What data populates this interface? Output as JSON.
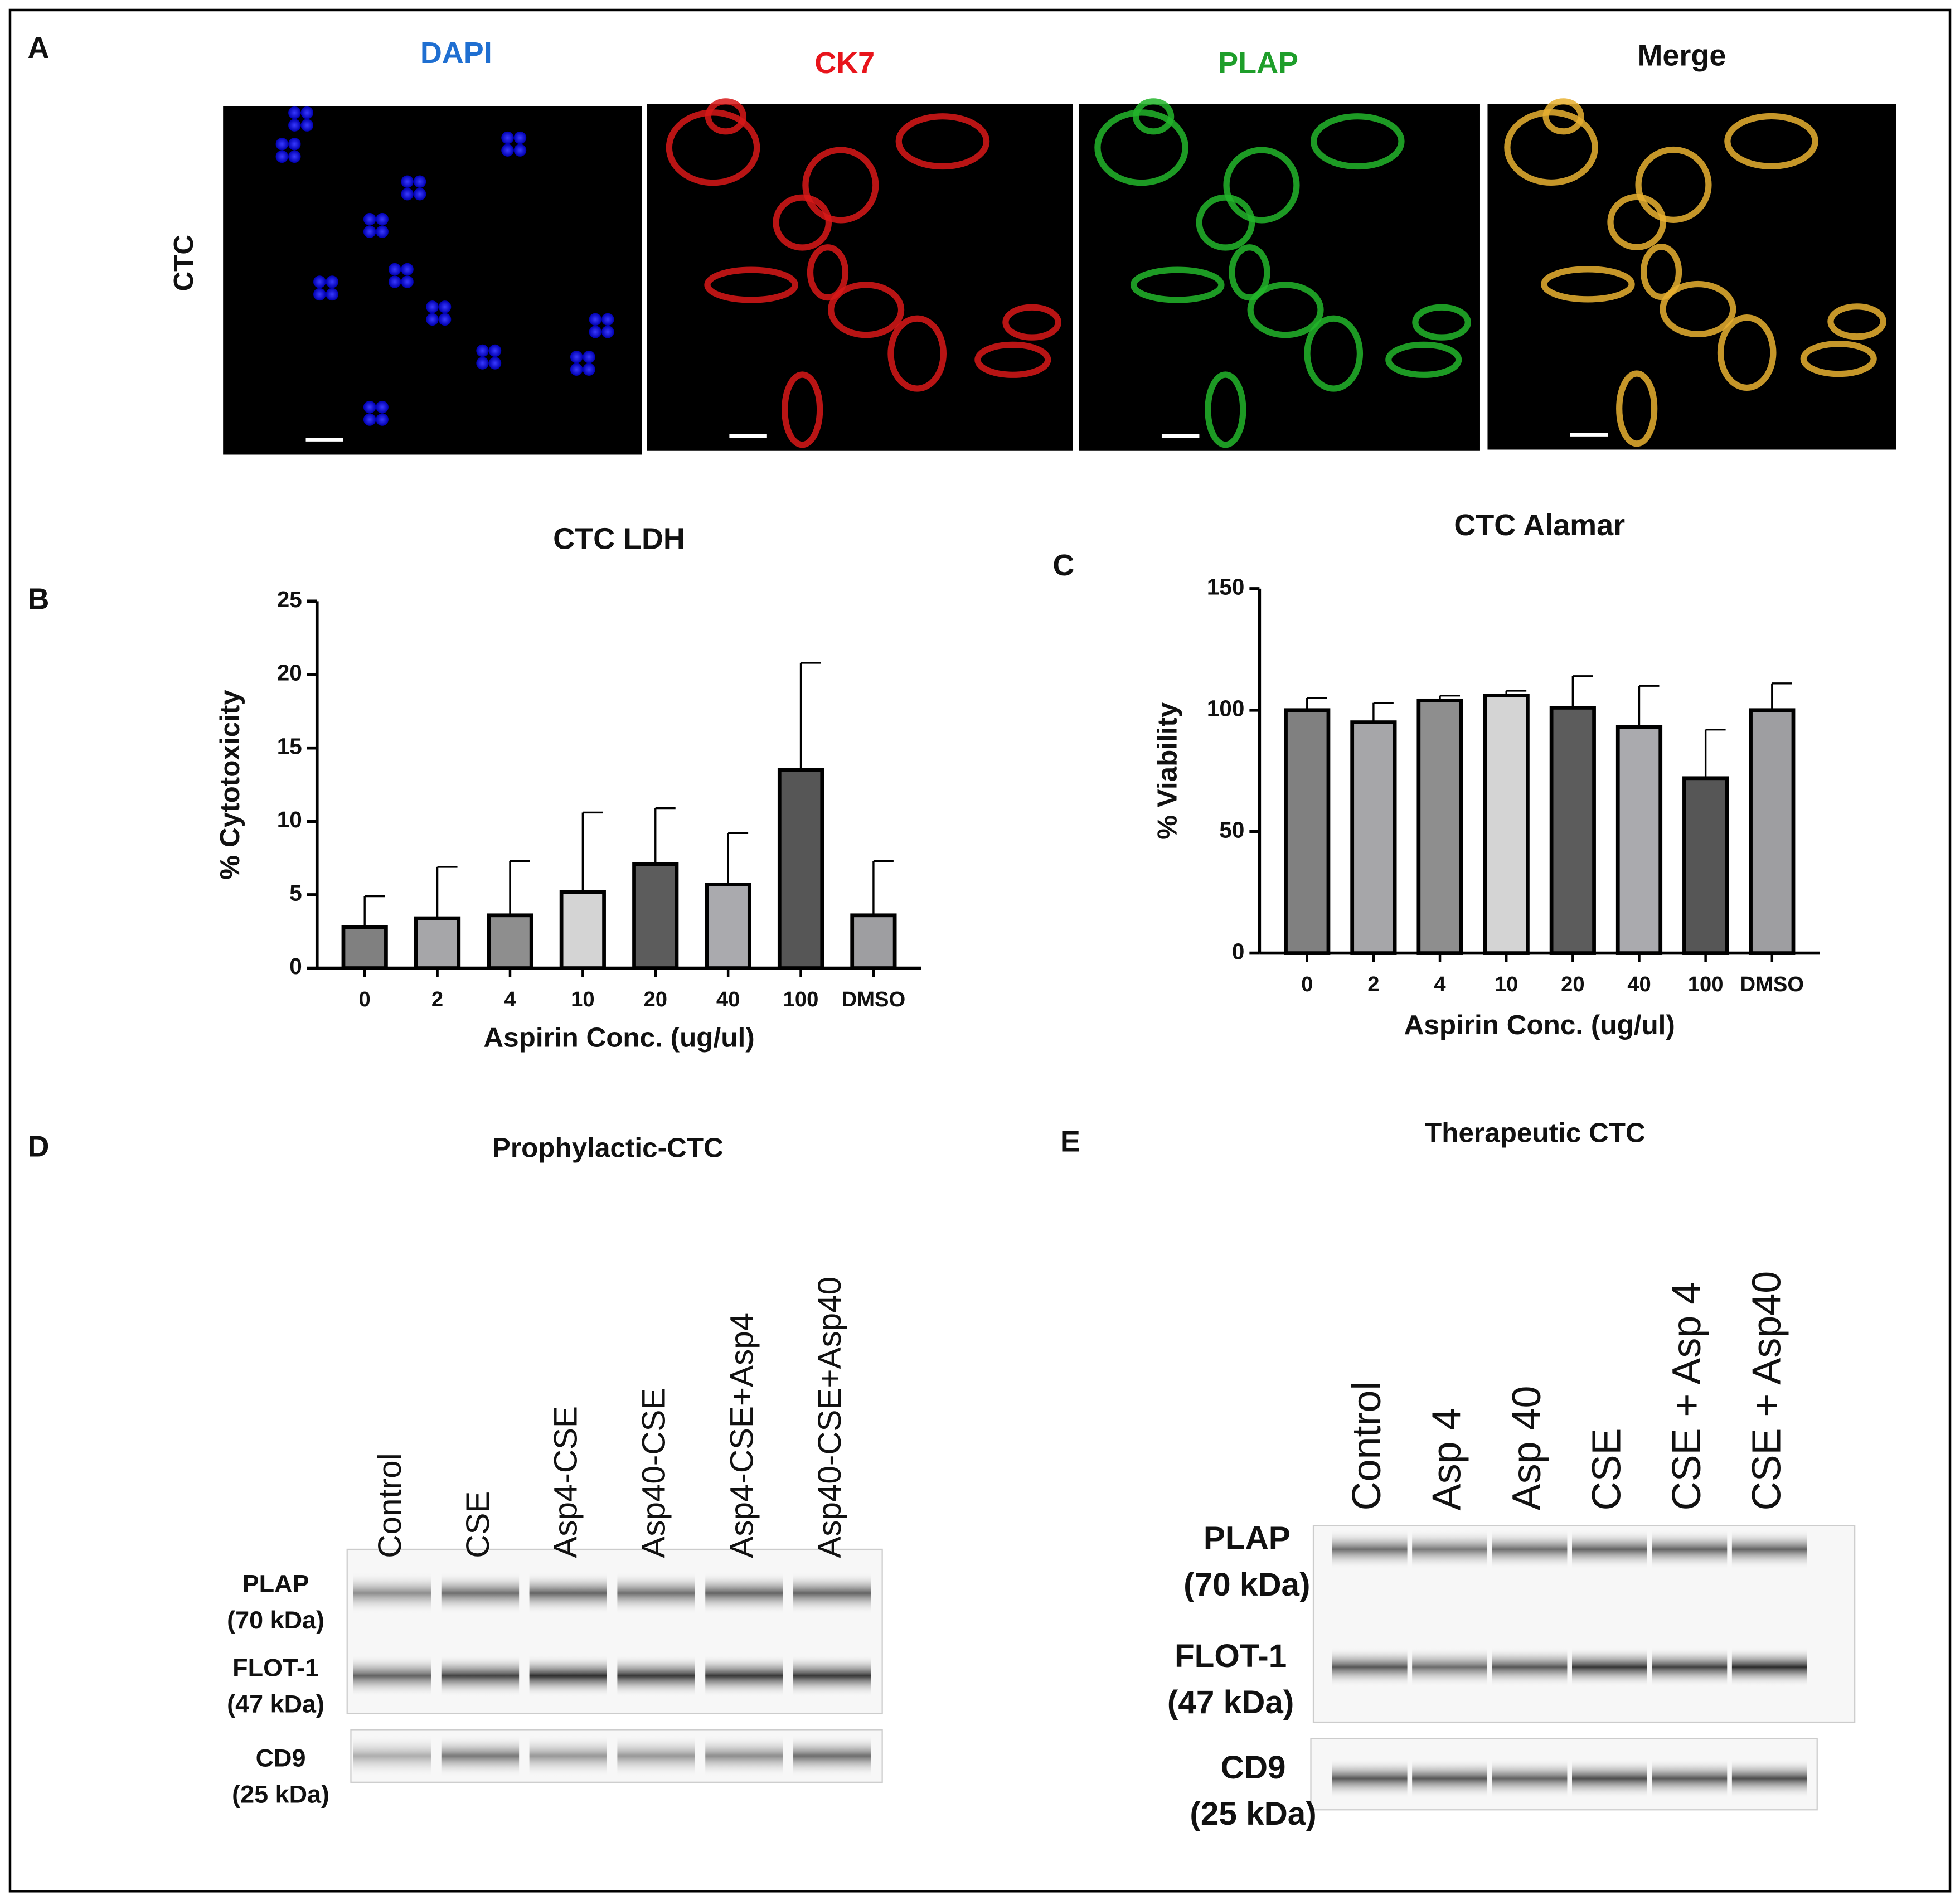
{
  "panel_a": {
    "letter": "A",
    "row_label": "CTC",
    "channels": [
      {
        "name": "DAPI",
        "color": "#1f6fd1"
      },
      {
        "name": "CK7",
        "color": "#e8141b"
      },
      {
        "name": "PLAP",
        "color": "#1e9e2a"
      },
      {
        "name": "Merge",
        "color": "#111111"
      }
    ]
  },
  "chart_data": [
    {
      "type": "bar",
      "letter": "B",
      "title": "CTC LDH",
      "xlabel": "Aspirin Conc. (ug/ul)",
      "ylabel": "% Cytotoxicity",
      "categories": [
        "0",
        "2",
        "4",
        "10",
        "20",
        "40",
        "100",
        "DMSO"
      ],
      "values": [
        2.8,
        3.4,
        3.6,
        5.2,
        7.1,
        5.7,
        13.5,
        3.6
      ],
      "errors": [
        2.1,
        3.5,
        3.7,
        5.4,
        3.8,
        3.5,
        7.3,
        3.7
      ],
      "colors": [
        "#808080",
        "#a6a6a9",
        "#8e8e8e",
        "#d4d4d4",
        "#5c5c5c",
        "#aaaaae",
        "#565656",
        "#9e9ea1"
      ],
      "ylim": [
        0,
        25
      ],
      "yticks": [
        0,
        5,
        10,
        15,
        20,
        25
      ]
    },
    {
      "type": "bar",
      "letter": "C",
      "title": "CTC Alamar",
      "xlabel": "Aspirin Conc. (ug/ul)",
      "ylabel": "% Viability",
      "categories": [
        "0",
        "2",
        "4",
        "10",
        "20",
        "40",
        "100",
        "DMSO"
      ],
      "values": [
        100,
        95,
        104,
        106,
        101,
        93,
        72,
        100
      ],
      "errors": [
        5,
        8,
        2,
        2,
        13,
        17,
        20,
        11
      ],
      "colors": [
        "#808080",
        "#a6a6a9",
        "#8e8e8e",
        "#d4d4d4",
        "#5c5c5c",
        "#aaaaae",
        "#565656",
        "#9e9ea1"
      ],
      "ylim": [
        0,
        150
      ],
      "yticks": [
        0,
        50,
        100,
        150
      ]
    }
  ],
  "panel_d": {
    "letter": "D",
    "title": "Prophylactic-CTC",
    "lanes": [
      "Control",
      "CSE",
      "Asp4-CSE",
      "Asp40-CSE",
      "Asp4-CSE+Asp4",
      "Asp40-CSE+Asp40"
    ],
    "proteins": [
      {
        "name": "PLAP",
        "size": "(70 kDa)"
      },
      {
        "name": "FLOT-1",
        "size": "(47 kDa)"
      },
      {
        "name": "CD9",
        "size": "(25 kDa)"
      }
    ]
  },
  "panel_e": {
    "letter": "E",
    "title": "Therapeutic CTC",
    "lanes": [
      "Control",
      "Asp 4",
      "Asp 40",
      "CSE",
      "CSE + Asp 4",
      "CSE + Asp40"
    ],
    "proteins": [
      {
        "name": "PLAP",
        "size": "(70 kDa)"
      },
      {
        "name": "FLOT-1",
        "size": "(47 kDa)"
      },
      {
        "name": "CD9",
        "size": "(25 kDa)"
      }
    ]
  }
}
